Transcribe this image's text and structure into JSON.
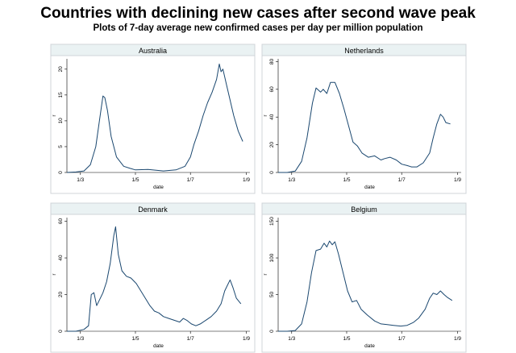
{
  "figure": {
    "title": "Countries with declining new cases after second wave peak",
    "subtitle": "Plots of 7-day average new confirmed cases per day per million population"
  },
  "chart_data": [
    {
      "type": "line",
      "title": "Australia",
      "xlabel": "date",
      "ylabel": "r",
      "x_ticks": [
        "1/3",
        "1/5",
        "1/7",
        "1/9"
      ],
      "y_ticks": [
        0,
        5,
        10,
        15,
        20
      ],
      "ylim": [
        0,
        22
      ],
      "grid": false,
      "line_color": "#1a476f",
      "x": [
        "2020-02-15",
        "2020-02-25",
        "2020-03-05",
        "2020-03-12",
        "2020-03-18",
        "2020-03-22",
        "2020-03-26",
        "2020-03-28",
        "2020-03-31",
        "2020-04-04",
        "2020-04-10",
        "2020-04-18",
        "2020-04-25",
        "2020-05-01",
        "2020-05-15",
        "2020-06-01",
        "2020-06-15",
        "2020-06-25",
        "2020-07-01",
        "2020-07-05",
        "2020-07-10",
        "2020-07-15",
        "2020-07-20",
        "2020-07-25",
        "2020-07-30",
        "2020-08-02",
        "2020-08-04",
        "2020-08-06",
        "2020-08-10",
        "2020-08-14",
        "2020-08-18",
        "2020-08-23",
        "2020-08-28"
      ],
      "y": [
        0,
        0.1,
        0.3,
        1.5,
        5,
        10,
        14.8,
        14.5,
        12,
        7,
        3,
        1.2,
        0.8,
        0.5,
        0.6,
        0.3,
        0.5,
        1.2,
        3,
        5.5,
        8,
        11,
        13.5,
        15.5,
        18,
        21,
        19.5,
        20,
        17,
        14,
        11,
        8,
        6
      ]
    },
    {
      "type": "line",
      "title": "Netherlands",
      "xlabel": "date",
      "ylabel": "r",
      "x_ticks": [
        "1/3",
        "1/5",
        "1/7",
        "1/9"
      ],
      "y_ticks": [
        0,
        20,
        40,
        60,
        80
      ],
      "ylim": [
        0,
        82
      ],
      "grid": false,
      "line_color": "#1a476f",
      "x": [
        "2020-02-15",
        "2020-02-25",
        "2020-03-05",
        "2020-03-12",
        "2020-03-18",
        "2020-03-24",
        "2020-03-28",
        "2020-04-02",
        "2020-04-05",
        "2020-04-09",
        "2020-04-13",
        "2020-04-18",
        "2020-04-23",
        "2020-04-28",
        "2020-05-03",
        "2020-05-08",
        "2020-05-13",
        "2020-05-18",
        "2020-05-25",
        "2020-06-01",
        "2020-06-08",
        "2020-06-12",
        "2020-06-18",
        "2020-06-25",
        "2020-07-01",
        "2020-07-07",
        "2020-07-12",
        "2020-07-18",
        "2020-07-25",
        "2020-08-01",
        "2020-08-05",
        "2020-08-09",
        "2020-08-13",
        "2020-08-16",
        "2020-08-19",
        "2020-08-24"
      ],
      "y": [
        0,
        0,
        1,
        8,
        25,
        50,
        61,
        58,
        60,
        57,
        65,
        65,
        57,
        46,
        34,
        22,
        19,
        14,
        11,
        12,
        9,
        10,
        11,
        9,
        6,
        5,
        4,
        4,
        7,
        14,
        25,
        35,
        42,
        40,
        36,
        35
      ]
    },
    {
      "type": "line",
      "title": "Denmark",
      "xlabel": "date",
      "ylabel": "r",
      "x_ticks": [
        "1/3",
        "1/5",
        "1/7",
        "1/9"
      ],
      "y_ticks": [
        0,
        20,
        40,
        60
      ],
      "ylim": [
        0,
        62
      ],
      "grid": false,
      "line_color": "#1a476f",
      "x": [
        "2020-02-15",
        "2020-02-25",
        "2020-03-05",
        "2020-03-10",
        "2020-03-13",
        "2020-03-16",
        "2020-03-19",
        "2020-03-22",
        "2020-03-26",
        "2020-03-30",
        "2020-04-03",
        "2020-04-07",
        "2020-04-09",
        "2020-04-12",
        "2020-04-16",
        "2020-04-21",
        "2020-04-26",
        "2020-05-02",
        "2020-05-07",
        "2020-05-12",
        "2020-05-17",
        "2020-05-22",
        "2020-05-27",
        "2020-06-01",
        "2020-06-07",
        "2020-06-13",
        "2020-06-19",
        "2020-06-23",
        "2020-06-27",
        "2020-07-02",
        "2020-07-07",
        "2020-07-12",
        "2020-07-18",
        "2020-07-24",
        "2020-07-30",
        "2020-08-04",
        "2020-08-08",
        "2020-08-11",
        "2020-08-14",
        "2020-08-17",
        "2020-08-21",
        "2020-08-26"
      ],
      "y": [
        0,
        0,
        1,
        3,
        20,
        21,
        14,
        17,
        21,
        27,
        37,
        52,
        57,
        42,
        33,
        30,
        29,
        26,
        22,
        18,
        14,
        11,
        10,
        8,
        7,
        6,
        5,
        7,
        6,
        4,
        3,
        4,
        6,
        8,
        11,
        15,
        22,
        25,
        28,
        24,
        18,
        15
      ]
    },
    {
      "type": "line",
      "title": "Belgium",
      "xlabel": "date",
      "ylabel": "r",
      "x_ticks": [
        "1/3",
        "1/5",
        "1/7",
        "1/9"
      ],
      "y_ticks": [
        0,
        50,
        100,
        150
      ],
      "ylim": [
        0,
        155
      ],
      "grid": false,
      "line_color": "#1a476f",
      "x": [
        "2020-02-15",
        "2020-02-25",
        "2020-03-05",
        "2020-03-12",
        "2020-03-18",
        "2020-03-23",
        "2020-03-28",
        "2020-04-02",
        "2020-04-06",
        "2020-04-09",
        "2020-04-12",
        "2020-04-15",
        "2020-04-18",
        "2020-04-22",
        "2020-04-27",
        "2020-05-02",
        "2020-05-07",
        "2020-05-12",
        "2020-05-17",
        "2020-05-24",
        "2020-06-01",
        "2020-06-08",
        "2020-06-15",
        "2020-06-22",
        "2020-06-30",
        "2020-07-07",
        "2020-07-14",
        "2020-07-20",
        "2020-07-27",
        "2020-08-01",
        "2020-08-05",
        "2020-08-09",
        "2020-08-13",
        "2020-08-17",
        "2020-08-21",
        "2020-08-26"
      ],
      "y": [
        0,
        0,
        1,
        10,
        40,
        80,
        110,
        112,
        120,
        115,
        123,
        118,
        122,
        105,
        80,
        55,
        40,
        42,
        30,
        22,
        14,
        10,
        9,
        8,
        7,
        8,
        12,
        18,
        30,
        45,
        52,
        50,
        55,
        50,
        46,
        42
      ]
    }
  ]
}
